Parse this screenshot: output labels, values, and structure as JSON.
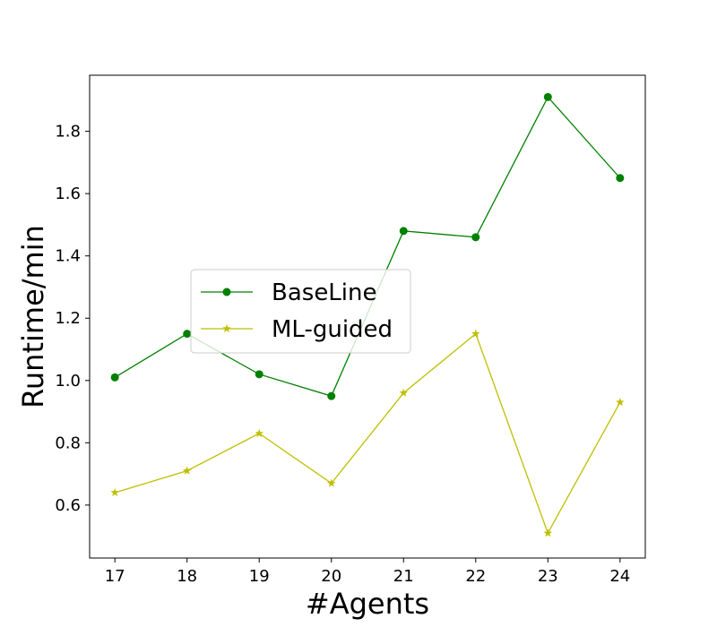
{
  "chart_data": {
    "type": "line",
    "title": "",
    "xlabel": "#Agents",
    "ylabel": "Runtime/min",
    "x": [
      17,
      18,
      19,
      20,
      21,
      22,
      23,
      24
    ],
    "xlim": [
      16.65,
      24.35
    ],
    "ylim": [
      0.43,
      1.98
    ],
    "xticks": [
      "17",
      "18",
      "19",
      "20",
      "21",
      "22",
      "23",
      "24"
    ],
    "yticks": [
      0.6,
      0.8,
      1.0,
      1.2,
      1.4,
      1.6,
      1.8
    ],
    "ytick_labels": [
      "0.6",
      "0.8",
      "1.0",
      "1.2",
      "1.4",
      "1.6",
      "1.8"
    ],
    "grid": false,
    "legend_position": "center-left",
    "series": [
      {
        "name": "BaseLine",
        "color": "#008000",
        "marker": "circle",
        "values": [
          1.01,
          1.15,
          1.02,
          0.95,
          1.48,
          1.46,
          1.91,
          1.65
        ]
      },
      {
        "name": "ML-guided",
        "color": "#bfbf00",
        "marker": "star",
        "values": [
          0.64,
          0.71,
          0.83,
          0.67,
          0.96,
          1.15,
          0.51,
          0.93
        ]
      }
    ]
  }
}
